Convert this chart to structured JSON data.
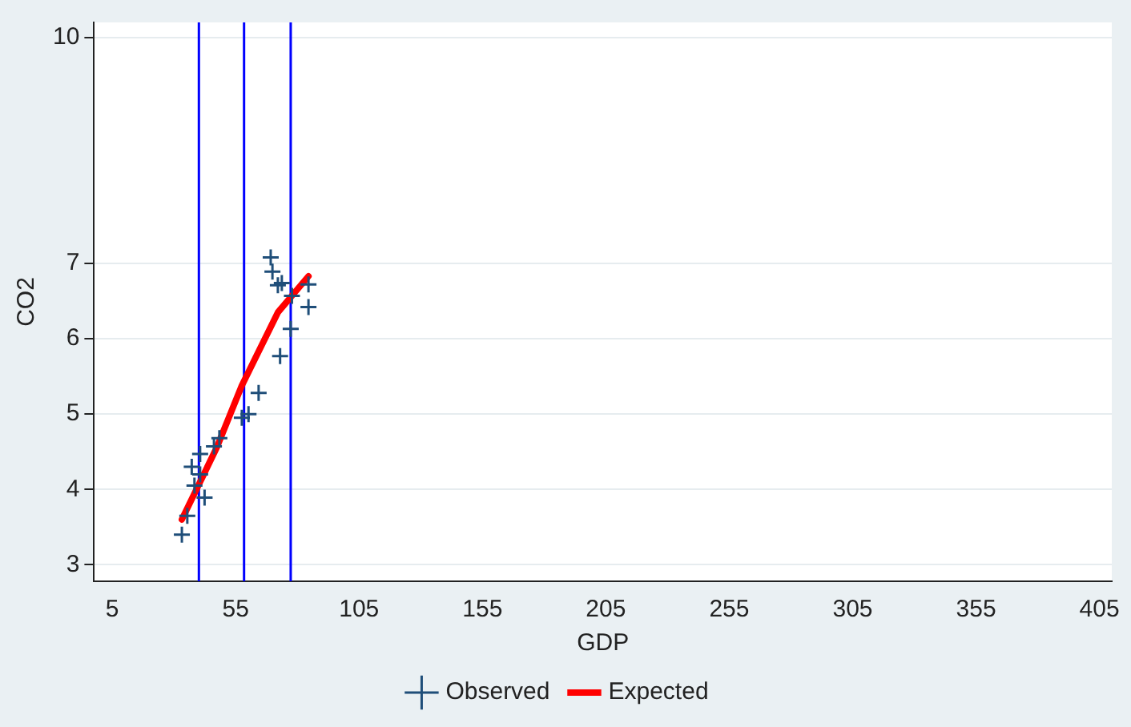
{
  "chart_data": {
    "type": "scatter",
    "xlabel": "GDP",
    "ylabel": "CO2",
    "xlim": [
      -2.4,
      410
    ],
    "xticks": [
      5,
      55,
      105,
      155,
      205,
      255,
      305,
      355,
      405
    ],
    "ylim": [
      2.78,
      10.2
    ],
    "yticks": [
      3,
      4,
      5,
      6,
      7,
      10
    ],
    "grid": "y",
    "legend": "bottom",
    "series": [
      {
        "name": "Observed",
        "marker": "cross",
        "color": "#1f4e79",
        "x": [
          69.2,
          69.9,
          72.1,
          73.7,
          84.5,
          84.5,
          77.8,
          77.3,
          73.0,
          64.3,
          60.2,
          57.5,
          48.4,
          46.2,
          40.6,
          37.2,
          40.6,
          38.3,
          42.4,
          35.4,
          33.2
        ],
        "values": [
          7.08,
          6.89,
          6.71,
          6.74,
          6.72,
          6.42,
          6.57,
          6.13,
          5.77,
          5.28,
          5.0,
          4.95,
          4.68,
          4.57,
          4.47,
          4.3,
          4.2,
          4.05,
          3.89,
          3.65,
          3.4
        ]
      },
      {
        "name": "Expected",
        "type": "line",
        "marker": "none",
        "color": "#ff0000",
        "x": [
          33.2,
          47.4,
          57.5,
          72.1,
          84.5
        ],
        "values": [
          3.6,
          4.56,
          5.38,
          6.35,
          6.83
        ]
      }
    ],
    "ref_lines": [
      {
        "axis": "x",
        "value": 40.1,
        "color": "#0000ff"
      },
      {
        "axis": "x",
        "value": 58.4,
        "color": "#0000ff"
      },
      {
        "axis": "x",
        "value": 77.3,
        "color": "#0000ff"
      }
    ]
  }
}
